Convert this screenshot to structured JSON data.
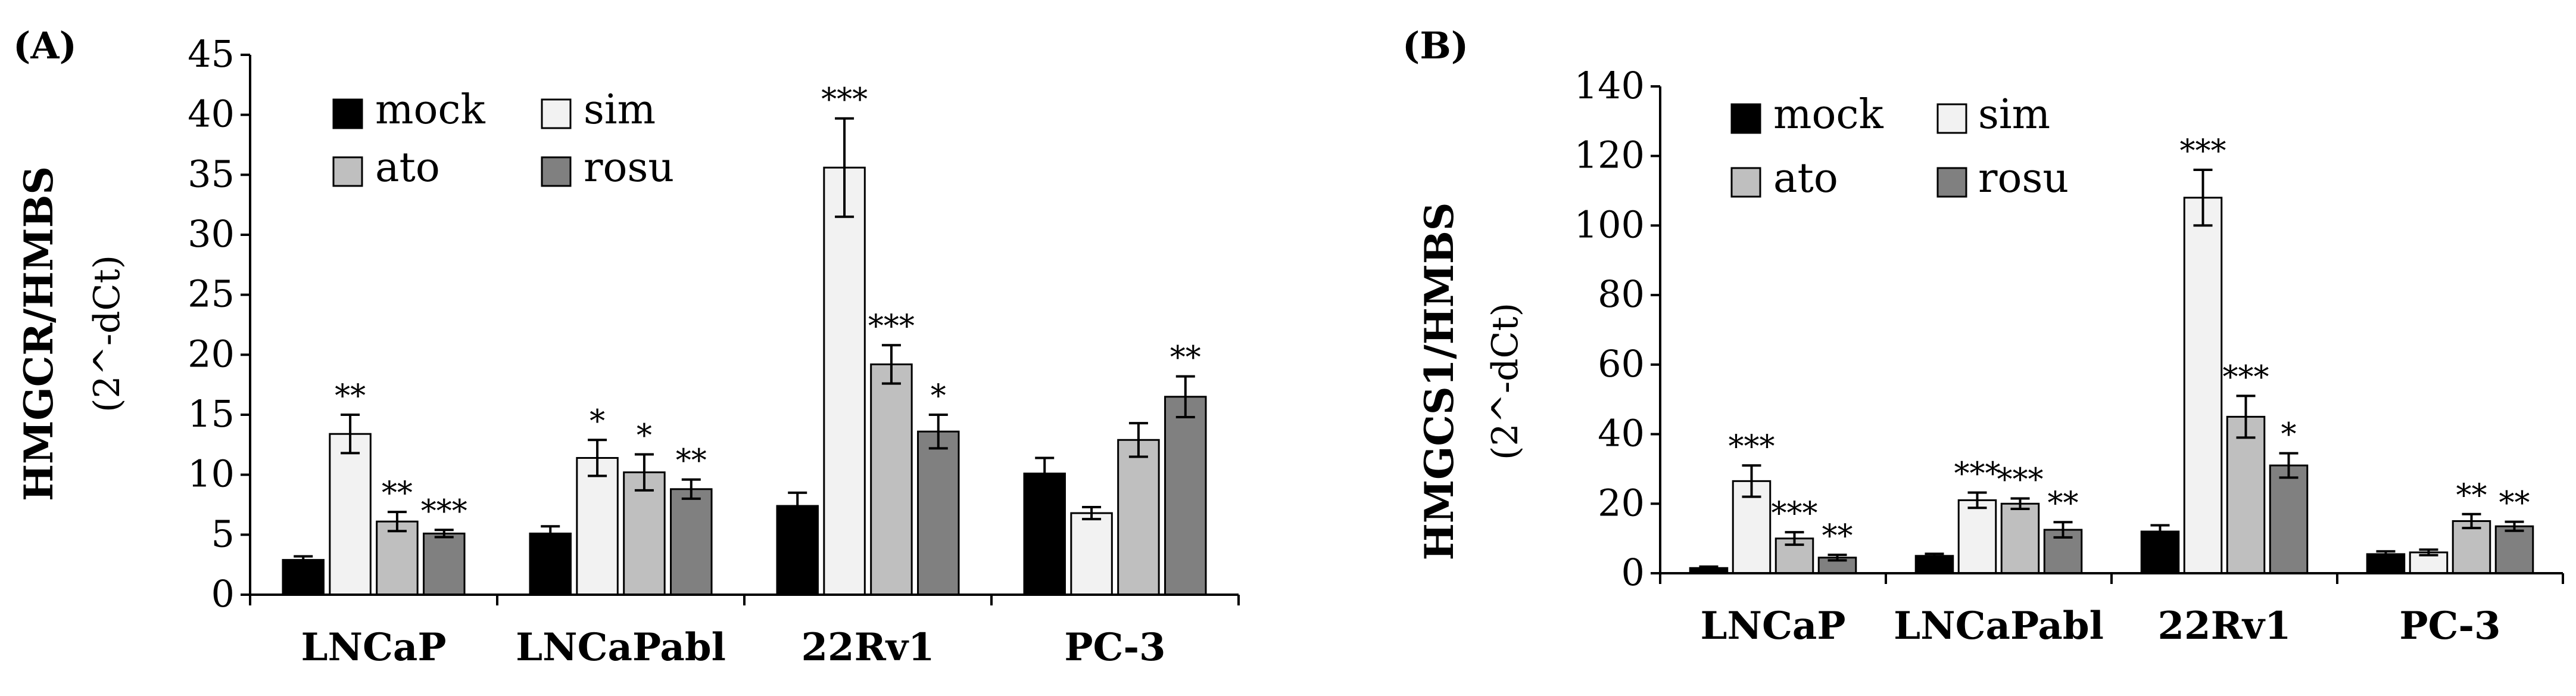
{
  "figure": {
    "panels": [
      "(A)",
      "(B)"
    ]
  },
  "chart_data": [
    {
      "type": "bar",
      "panel_label": "(A)",
      "title": "",
      "xlabel": "",
      "ylabel": "HMGCR/HMBS",
      "ylabel_unit": "(2^-dCt)",
      "ylim": [
        0,
        45
      ],
      "yticks": [
        0,
        5,
        10,
        15,
        20,
        25,
        30,
        35,
        40,
        45
      ],
      "grid": false,
      "legend_position": "top-left",
      "categories": [
        "LNCaP",
        "LNCaPabl",
        "22Rv1",
        "PC-3"
      ],
      "series": [
        {
          "name": "mock",
          "color": "#000000",
          "values": [
            2.9,
            5.1,
            7.4,
            10.1
          ],
          "errors": [
            0.3,
            0.6,
            1.1,
            1.3
          ],
          "significance": [
            "",
            "",
            "",
            ""
          ]
        },
        {
          "name": "sim",
          "color": "#f2f2f2",
          "values": [
            13.4,
            11.4,
            35.6,
            6.8
          ],
          "errors": [
            1.6,
            1.5,
            4.1,
            0.5
          ],
          "significance": [
            "**",
            "*",
            "***",
            ""
          ]
        },
        {
          "name": "ato",
          "color": "#bfbfbf",
          "values": [
            6.1,
            10.2,
            19.2,
            12.9
          ],
          "errors": [
            0.8,
            1.5,
            1.6,
            1.4
          ],
          "significance": [
            "**",
            "*",
            "***",
            ""
          ]
        },
        {
          "name": "rosu",
          "color": "#808080",
          "values": [
            5.1,
            8.8,
            13.6,
            16.5
          ],
          "errors": [
            0.3,
            0.8,
            1.4,
            1.7
          ],
          "significance": [
            "***",
            "**",
            "*",
            "**"
          ]
        }
      ]
    },
    {
      "type": "bar",
      "panel_label": "(B)",
      "title": "",
      "xlabel": "",
      "ylabel": "HMGCS1/HMBS",
      "ylabel_unit": "(2^-dCt)",
      "ylim": [
        0,
        140
      ],
      "yticks": [
        0,
        20,
        40,
        60,
        80,
        100,
        120,
        140
      ],
      "grid": false,
      "legend_position": "top-left",
      "categories": [
        "LNCaP",
        "LNCaPabl",
        "22Rv1",
        "PC-3"
      ],
      "series": [
        {
          "name": "mock",
          "color": "#000000",
          "values": [
            1.5,
            5.0,
            12.0,
            5.5
          ],
          "errors": [
            0.4,
            0.6,
            1.8,
            0.8
          ],
          "significance": [
            "",
            "",
            "",
            ""
          ]
        },
        {
          "name": "sim",
          "color": "#f2f2f2",
          "values": [
            26.5,
            21.0,
            108.0,
            6.0
          ],
          "errors": [
            4.5,
            2.2,
            8.0,
            0.8
          ],
          "significance": [
            "***",
            "***",
            "***",
            ""
          ]
        },
        {
          "name": "ato",
          "color": "#bfbfbf",
          "values": [
            10.0,
            20.0,
            45.0,
            15.0
          ],
          "errors": [
            1.8,
            1.5,
            6.0,
            2.0
          ],
          "significance": [
            "***",
            "***",
            "***",
            "**"
          ]
        },
        {
          "name": "rosu",
          "color": "#808080",
          "values": [
            4.5,
            12.5,
            31.0,
            13.5
          ],
          "errors": [
            0.8,
            2.2,
            3.5,
            1.3
          ],
          "significance": [
            "**",
            "**",
            "*",
            "**"
          ]
        }
      ]
    }
  ]
}
